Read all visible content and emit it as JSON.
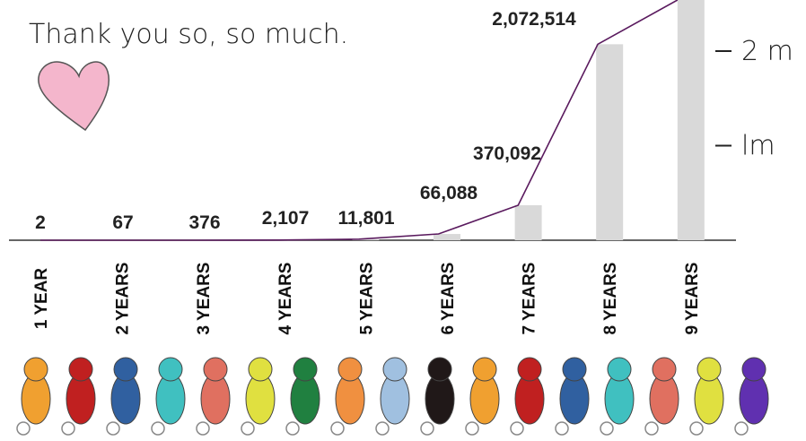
{
  "message": "Thank you so, so much.",
  "chart_data": {
    "type": "bar",
    "categories": [
      "1 YEAR",
      "2 YEARS",
      "3 YEARS",
      "4 YEARS",
      "5 YEARS",
      "6 YEARS",
      "7 YEARS",
      "8 YEARS",
      "9 YEARS"
    ],
    "values": [
      2,
      67,
      376,
      2107,
      11801,
      66088,
      370092,
      2072514,
      2540000
    ],
    "value_labels": [
      "2",
      "67",
      "376",
      "2,107",
      "11,801",
      "66,088",
      "370,092",
      "2,072,514",
      null
    ],
    "color": "#d9d9d9",
    "curve_color": "#5a1a5e",
    "ylim": [
      0,
      2540000
    ],
    "yticks": [
      {
        "value": 1000000,
        "label": "lm"
      },
      {
        "value": 2000000,
        "label": "2 m"
      }
    ]
  }
}
